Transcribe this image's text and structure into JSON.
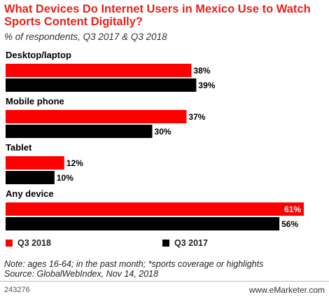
{
  "header": {
    "title": "What Devices Do Internet Users in Mexico Use to Watch Sports Content Digitally?",
    "subtitle": "% of respondents, Q3 2017 & Q3 2018"
  },
  "colors": {
    "q3_2018": "#ff0000",
    "q3_2017": "#000000",
    "title": "#e5231b"
  },
  "chart_data": {
    "type": "bar",
    "orientation": "horizontal",
    "categories": [
      "Desktop/laptop",
      "Mobile phone",
      "Tablet",
      "Any device"
    ],
    "series": [
      {
        "name": "Q3 2018",
        "values": [
          38,
          37,
          12,
          61
        ],
        "labels": [
          "38%",
          "37%",
          "12%",
          "61%"
        ]
      },
      {
        "name": "Q3 2017",
        "values": [
          39,
          30,
          10,
          56
        ],
        "labels": [
          "39%",
          "30%",
          "10%",
          "56%"
        ]
      }
    ],
    "xlim": [
      0,
      65
    ],
    "grid": false,
    "legend": "bottom"
  },
  "footer": {
    "note": "Note: ages 16-64; in the past month; *sports coverage or highlights",
    "source": "Source: GlobalWebIndex, Nov 14, 2018",
    "id": "243276",
    "brand": "www.eMarketer.com"
  }
}
